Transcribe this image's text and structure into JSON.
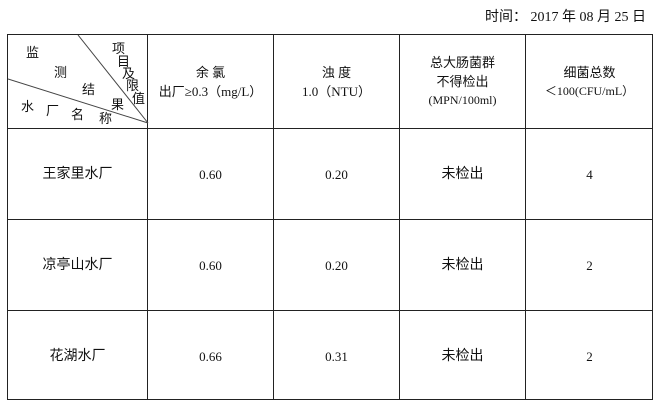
{
  "date_label": "时间： 2017 年 08 月 25 日",
  "corner": {
    "top_chars": [
      "监",
      "测",
      "结",
      "果"
    ],
    "bottom_chars": [
      "水",
      "厂",
      "名",
      "称"
    ],
    "right_chars": [
      "项",
      "目",
      "及",
      "限",
      "值"
    ]
  },
  "columns": [
    {
      "line1": "余 氯",
      "line2": "出厂≥0.3（mg/L）"
    },
    {
      "line1": "浊 度",
      "line2": "1.0（NTU）"
    },
    {
      "line1": "总大肠菌群",
      "line2": "不得检出",
      "line3": "(MPN/100ml)"
    },
    {
      "line1": "细菌总数",
      "line2": "＜100(CFU/mL）"
    }
  ],
  "rows": [
    {
      "name": "王家里水厂",
      "values": [
        "0.60",
        "0.20",
        "未检出",
        "4"
      ]
    },
    {
      "name": "凉亭山水厂",
      "values": [
        "0.60",
        "0.20",
        "未检出",
        "2"
      ]
    },
    {
      "name": "花湖水厂",
      "values": [
        "0.66",
        "0.31",
        "未检出",
        "2"
      ]
    }
  ]
}
